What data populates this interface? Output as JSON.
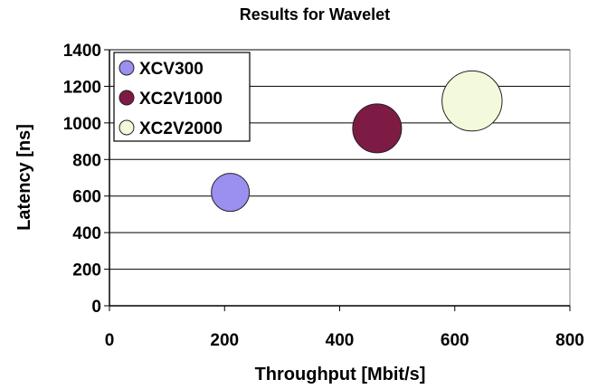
{
  "chart_data": {
    "type": "bubble",
    "title": "Results for Wavelet",
    "xlabel": "Throughput [Mbit/s]",
    "ylabel": "Latency [ns]",
    "xlim": [
      0,
      800
    ],
    "ylim": [
      0,
      1400
    ],
    "x_ticks": [
      "0",
      "200",
      "400",
      "600",
      "800"
    ],
    "y_ticks": [
      "0",
      "200",
      "400",
      "600",
      "800",
      "1000",
      "1200",
      "1400"
    ],
    "grid": "horizontal",
    "legend_position": "top-left",
    "series": [
      {
        "name": "XCV300",
        "x": 210,
        "y": 620,
        "size": 1.0,
        "color": "#9b8ff0"
      },
      {
        "name": "XC2V1000",
        "x": 465,
        "y": 970,
        "size": 1.65,
        "color": "#7d1b45"
      },
      {
        "name": "XC2V2000",
        "x": 630,
        "y": 1120,
        "size": 2.5,
        "color": "#f3fadb"
      }
    ]
  }
}
